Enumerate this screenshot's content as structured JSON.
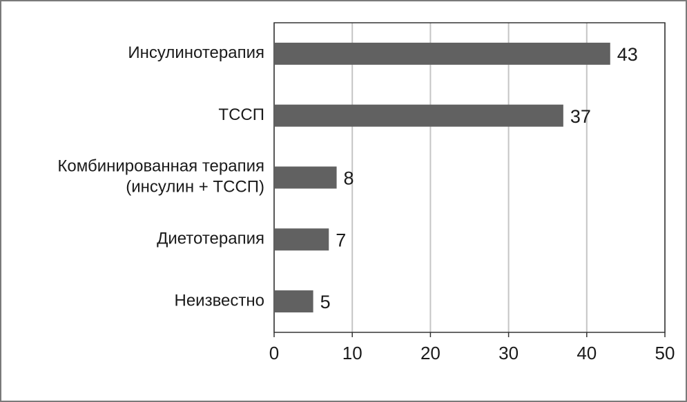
{
  "chart_data": {
    "type": "bar",
    "orientation": "horizontal",
    "categories": [
      "Инсулинотерапия",
      "ТССП",
      "Комбинированная терапия\n(инсулин + ТССП)",
      "Диетотерапия",
      "Неизвестно"
    ],
    "values": [
      43,
      37,
      8,
      7,
      5
    ],
    "color": "#616161",
    "xlim": [
      0,
      50
    ],
    "xticks": [
      0,
      10,
      20,
      30,
      40,
      50
    ],
    "grid": true
  }
}
